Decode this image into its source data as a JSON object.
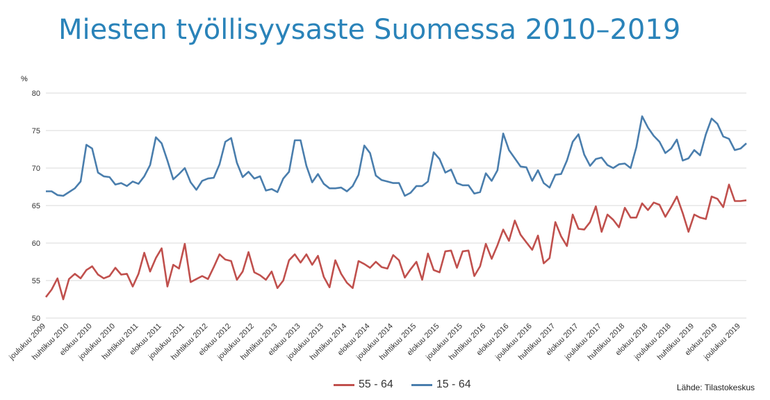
{
  "title": "Miesten työllisyysaste Suomessa 2010–2019",
  "source": "Lähde: Tilastokeskus",
  "chart_data": {
    "type": "line",
    "ylabel": "%",
    "ylim": [
      50,
      80
    ],
    "yticks": [
      50,
      55,
      60,
      65,
      70,
      75,
      80
    ],
    "grid": true,
    "legend_position": "bottom",
    "x_tick_labels": [
      "joulukuu 2009",
      "huhtikuu 2010",
      "elokuu 2010",
      "joulukuu 2010",
      "huhtikuu 2011",
      "elokuu 2011",
      "joulukuu 2011",
      "huhtikuu 2012",
      "elokuu 2012",
      "joulukuu 2012",
      "huhtikuu 2013",
      "elokuu 2013",
      "joulukuu 2013",
      "huhtikuu 2014",
      "elokuu 2014",
      "joulukuu 2014",
      "huhtikuu 2015",
      "elokuu 2015",
      "joulukuu 2015",
      "huhtikuu 2016",
      "elokuu 2016",
      "joulukuu 2016",
      "huhtikuu 2017",
      "elokuu 2017",
      "joulukuu 2017",
      "huhtikuu 2018",
      "elokuu 2018",
      "joulukuu 2018",
      "huhtikuu 2019",
      "elokuu 2019",
      "joulukuu 2019"
    ],
    "series": [
      {
        "name": "55 - 64",
        "color": "#c0504d",
        "values": [
          52.8,
          53.8,
          55.3,
          52.5,
          55.2,
          55.9,
          55.3,
          56.4,
          56.9,
          55.8,
          55.3,
          55.6,
          56.7,
          55.8,
          55.9,
          54.2,
          55.9,
          58.7,
          56.2,
          58.0,
          59.3,
          54.2,
          57.1,
          56.6,
          59.9,
          54.8,
          55.2,
          55.6,
          55.2,
          56.8,
          58.5,
          57.8,
          57.6,
          55.1,
          56.2,
          58.8,
          56.1,
          55.7,
          55.1,
          56.2,
          54.0,
          55.0,
          57.7,
          58.5,
          57.4,
          58.5,
          57.1,
          58.3,
          55.5,
          54.1,
          57.7,
          55.9,
          54.7,
          54.0,
          57.6,
          57.2,
          56.7,
          57.5,
          56.8,
          56.6,
          58.4,
          57.7,
          55.4,
          56.5,
          57.5,
          55.1,
          58.6,
          56.4,
          56.1,
          58.9,
          59.0,
          56.7,
          58.9,
          59.0,
          55.6,
          56.9,
          59.9,
          57.9,
          59.7,
          61.8,
          60.3,
          63.0,
          61.1,
          60.1,
          59.1,
          61.0,
          57.3,
          58.0,
          62.8,
          60.9,
          59.6,
          63.8,
          61.9,
          61.8,
          62.8,
          64.9,
          61.5,
          63.8,
          63.1,
          62.1,
          64.7,
          63.4,
          63.4,
          65.3,
          64.4,
          65.4,
          65.1,
          63.5,
          64.8,
          66.2,
          64.0,
          61.5,
          63.8,
          63.4,
          63.2,
          66.2,
          65.9,
          64.8,
          67.8,
          65.6,
          65.6,
          65.7
        ]
      },
      {
        "name": "15 - 64",
        "color": "#4a7ead",
        "values": [
          66.9,
          66.9,
          66.4,
          66.3,
          66.8,
          67.3,
          68.2,
          73.1,
          72.6,
          69.4,
          68.9,
          68.8,
          67.8,
          68.0,
          67.6,
          68.2,
          67.9,
          68.9,
          70.4,
          74.1,
          73.3,
          71.0,
          68.5,
          69.2,
          70.0,
          68.1,
          67.1,
          68.3,
          68.6,
          68.7,
          70.5,
          73.5,
          74.0,
          70.7,
          68.8,
          69.5,
          68.6,
          68.9,
          67.0,
          67.2,
          66.8,
          68.6,
          69.5,
          73.7,
          73.7,
          70.3,
          68.1,
          69.2,
          67.9,
          67.3,
          67.3,
          67.4,
          66.9,
          67.6,
          69.1,
          73.0,
          72.0,
          69.0,
          68.4,
          68.2,
          68.0,
          68.0,
          66.3,
          66.7,
          67.6,
          67.6,
          68.2,
          72.1,
          71.2,
          69.4,
          69.8,
          68.0,
          67.7,
          67.7,
          66.6,
          66.8,
          69.3,
          68.3,
          69.7,
          74.6,
          72.4,
          71.3,
          70.2,
          70.1,
          68.3,
          69.7,
          68.0,
          67.4,
          69.1,
          69.2,
          71.0,
          73.5,
          74.5,
          71.8,
          70.3,
          71.2,
          71.4,
          70.4,
          70.0,
          70.5,
          70.6,
          70.0,
          72.8,
          76.9,
          75.4,
          74.3,
          73.5,
          72.0,
          72.6,
          73.8,
          71.0,
          71.3,
          72.4,
          71.7,
          74.5,
          76.6,
          75.9,
          74.2,
          73.9,
          72.4,
          72.6,
          73.3
        ]
      }
    ]
  }
}
